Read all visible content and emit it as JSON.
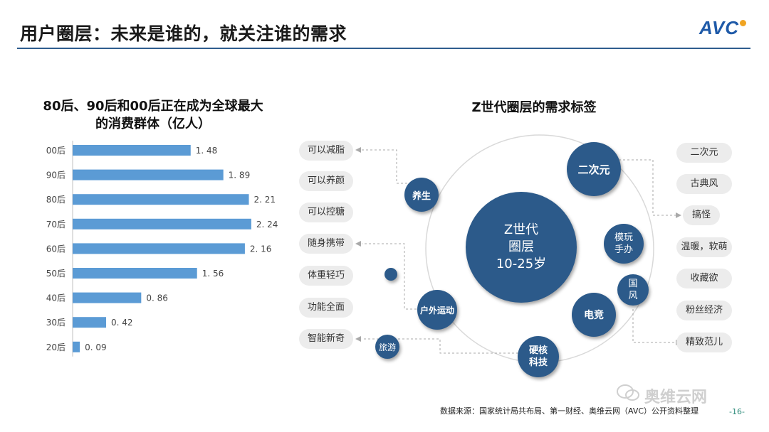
{
  "header": {
    "title": "用户圈层：未来是谁的，就关注谁的需求",
    "logo_text": "AVC"
  },
  "left_chart": {
    "title_line1": "80后、90后和00后正在成为全球最大",
    "title_line2": "的消费群体（亿人）"
  },
  "chart_data": {
    "type": "bar",
    "orientation": "horizontal",
    "title": "80后、90后和00后正在成为全球最大的消费群体（亿人）",
    "categories": [
      "00后",
      "90后",
      "80后",
      "70后",
      "60后",
      "50后",
      "40后",
      "30后",
      "20后"
    ],
    "values": [
      1.48,
      1.89,
      2.21,
      2.24,
      2.16,
      1.56,
      0.86,
      0.42,
      0.09
    ],
    "value_labels": [
      "1. 48",
      "1. 89",
      "2. 21",
      "2. 24",
      "2. 16",
      "1. 56",
      "0. 86",
      "0. 42",
      "0. 09"
    ],
    "bar_color": "#5b9bd5",
    "grid": false
  },
  "right_diagram": {
    "title": "Z世代圈层的需求标签",
    "center": {
      "line1": "Z世代",
      "line2": "圈层",
      "line3": "10-25岁"
    },
    "bubbles": {
      "yangsheng": "养生",
      "erciyuan": "二次元",
      "mowan_line1": "模玩",
      "mowan_line2": "手办",
      "guofeng_line1": "国",
      "guofeng_line2": "风",
      "dianjing": "电竞",
      "yinghe_line1": "硬核",
      "yinghe_line2": "科技",
      "huwai": "户外运动",
      "lvyou": "旅游"
    },
    "left_tags": [
      "可以减脂",
      "可以养颜",
      "可以控糖",
      "随身携带",
      "体重轻巧",
      "功能全面",
      "智能新奇"
    ],
    "right_tags": [
      "二次元",
      "古典风",
      "搞怪",
      "温暖，软萌",
      "收藏欲",
      "粉丝经济",
      "精致范儿"
    ],
    "accent_color": "#2c5a8a"
  },
  "footer": {
    "source": "数据来源：国家统计局共布局、第一财经、奥维云网（AVC）公开资料整理",
    "page": "-16-",
    "watermark": "奥维云网"
  }
}
